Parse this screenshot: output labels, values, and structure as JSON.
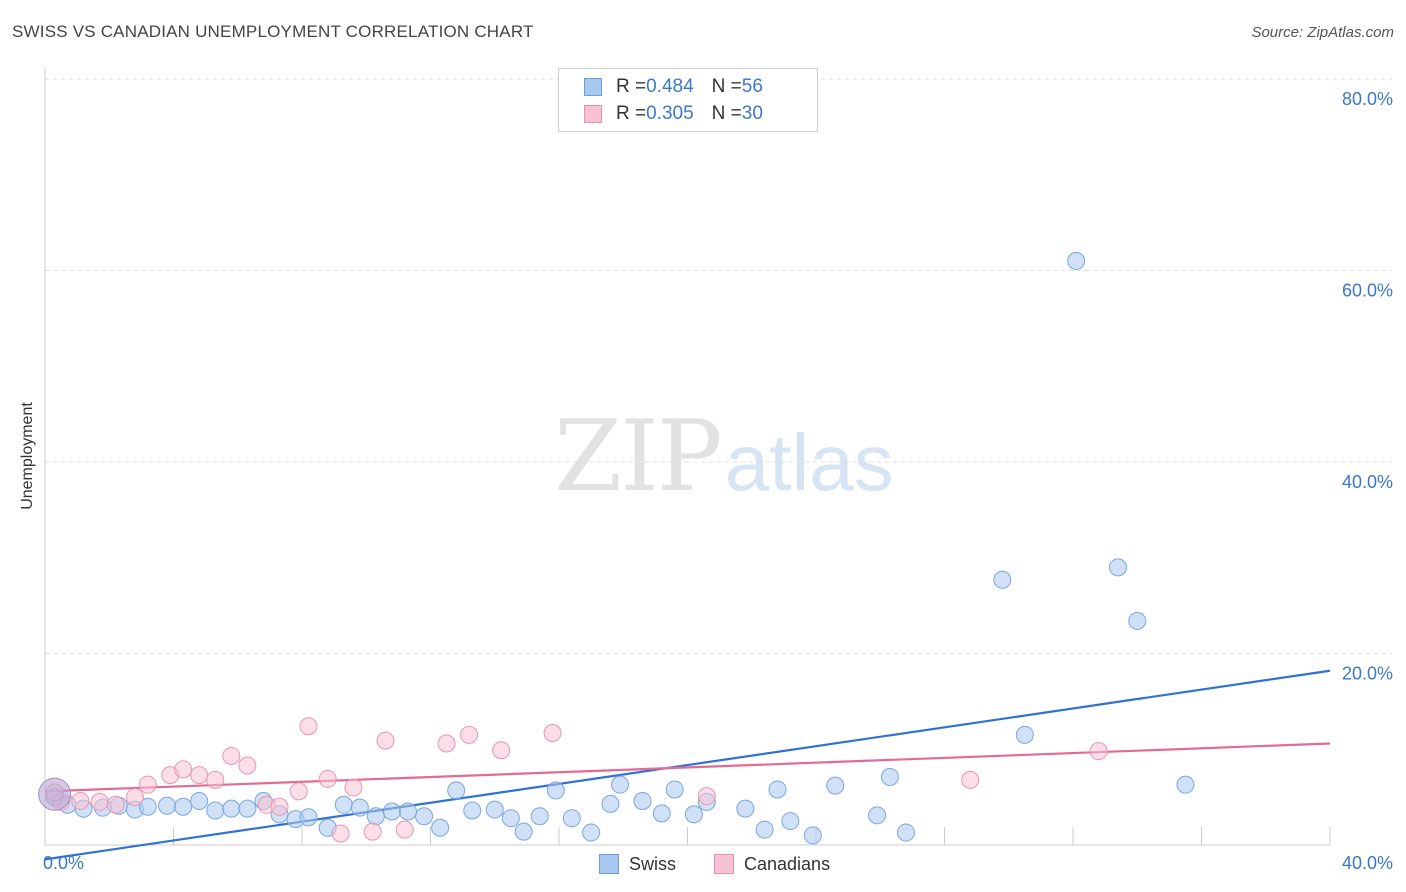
{
  "header": {
    "title": "SWISS VS CANADIAN UNEMPLOYMENT CORRELATION CHART",
    "source": "Source: ZipAtlas.com"
  },
  "watermark": {
    "zip": "ZIP",
    "atlas": "atlas"
  },
  "legend_top": [
    {
      "r_label": "R = ",
      "r_value": "0.484",
      "n_label": "N = ",
      "n_value": "56",
      "color": "#a9c8f0",
      "border": "#6f9fd8"
    },
    {
      "r_label": "R = ",
      "r_value": "0.305",
      "n_label": "N = ",
      "n_value": "30",
      "color": "#f7c3d3",
      "border": "#e593ad"
    }
  ],
  "legend_bottom": [
    {
      "label": "Swiss",
      "color": "#a9c8f0",
      "border": "#6f9fd8"
    },
    {
      "label": "Canadians",
      "color": "#f7c3d3",
      "border": "#e593ad"
    }
  ],
  "colors": {
    "swiss_fill": "#a9c8f0",
    "swiss_stroke": "#7aa6dc",
    "swiss_line": "#2f72d1",
    "canadian_fill": "#f7c3d3",
    "canadian_stroke": "#e897b0",
    "canadian_line": "#e46a94",
    "tick_label": "#3a78c9",
    "grid": "#dddddd"
  },
  "chart_data": {
    "type": "scatter",
    "title": "SWISS VS CANADIAN UNEMPLOYMENT CORRELATION CHART",
    "xlabel": "",
    "ylabel": "Unemployment",
    "xlim": [
      0,
      40
    ],
    "ylim": [
      0,
      80
    ],
    "x_tick_labels": [
      "0.0%",
      "40.0%"
    ],
    "y_ticks": [
      20,
      40,
      60,
      80
    ],
    "y_tick_labels": [
      "20.0%",
      "40.0%",
      "60.0%",
      "80.0%"
    ],
    "grid": "horizontal dashed",
    "legend_position": "top-center",
    "series": [
      {
        "name": "Swiss",
        "r": 0.484,
        "n": 56,
        "trend": [
          [
            0,
            -1.5
          ],
          [
            40,
            18.2
          ]
        ],
        "points": [
          [
            0.3,
            5.0
          ],
          [
            0.7,
            4.2
          ],
          [
            1.2,
            3.8
          ],
          [
            1.8,
            3.9
          ],
          [
            2.3,
            4.1
          ],
          [
            2.8,
            3.7
          ],
          [
            3.2,
            4.0
          ],
          [
            3.8,
            4.1
          ],
          [
            4.3,
            4.0
          ],
          [
            4.8,
            4.6
          ],
          [
            5.3,
            3.6
          ],
          [
            5.8,
            3.8
          ],
          [
            6.3,
            3.8
          ],
          [
            6.8,
            4.6
          ],
          [
            7.3,
            3.2
          ],
          [
            7.8,
            2.7
          ],
          [
            8.2,
            2.9
          ],
          [
            8.8,
            1.8
          ],
          [
            9.3,
            4.2
          ],
          [
            9.8,
            3.9
          ],
          [
            10.3,
            3.0
          ],
          [
            10.8,
            3.5
          ],
          [
            11.3,
            3.5
          ],
          [
            11.8,
            3.0
          ],
          [
            12.3,
            1.8
          ],
          [
            12.8,
            5.7
          ],
          [
            13.3,
            3.6
          ],
          [
            14.0,
            3.7
          ],
          [
            14.5,
            2.8
          ],
          [
            14.9,
            1.4
          ],
          [
            15.4,
            3.0
          ],
          [
            15.9,
            5.7
          ],
          [
            16.4,
            2.8
          ],
          [
            17.0,
            1.3
          ],
          [
            17.6,
            4.3
          ],
          [
            17.9,
            6.3
          ],
          [
            18.6,
            4.6
          ],
          [
            19.2,
            3.3
          ],
          [
            19.6,
            5.8
          ],
          [
            20.2,
            3.2
          ],
          [
            20.6,
            4.5
          ],
          [
            21.8,
            3.8
          ],
          [
            22.4,
            1.6
          ],
          [
            22.8,
            5.8
          ],
          [
            23.2,
            2.5
          ],
          [
            23.9,
            1.0
          ],
          [
            24.6,
            6.2
          ],
          [
            25.9,
            3.1
          ],
          [
            26.3,
            7.1
          ],
          [
            26.8,
            1.3
          ],
          [
            29.8,
            27.7
          ],
          [
            30.5,
            11.5
          ],
          [
            32.1,
            61.0
          ],
          [
            33.4,
            29.0
          ],
          [
            34.0,
            23.4
          ],
          [
            35.5,
            6.3
          ]
        ]
      },
      {
        "name": "Canadians",
        "r": 0.305,
        "n": 30,
        "trend": [
          [
            0,
            5.6
          ],
          [
            40,
            10.6
          ]
        ],
        "points": [
          [
            0.5,
            4.5
          ],
          [
            1.1,
            4.6
          ],
          [
            1.7,
            4.5
          ],
          [
            2.2,
            4.2
          ],
          [
            2.8,
            5.0
          ],
          [
            3.2,
            6.3
          ],
          [
            3.9,
            7.3
          ],
          [
            4.3,
            7.9
          ],
          [
            4.8,
            7.3
          ],
          [
            5.3,
            6.8
          ],
          [
            5.8,
            9.3
          ],
          [
            6.3,
            8.3
          ],
          [
            6.9,
            4.2
          ],
          [
            7.3,
            4.0
          ],
          [
            7.9,
            5.6
          ],
          [
            8.2,
            12.4
          ],
          [
            8.8,
            6.9
          ],
          [
            9.2,
            1.2
          ],
          [
            9.6,
            6.0
          ],
          [
            10.2,
            1.4
          ],
          [
            10.6,
            10.9
          ],
          [
            11.2,
            1.6
          ],
          [
            12.5,
            10.6
          ],
          [
            13.2,
            11.5
          ],
          [
            14.2,
            9.9
          ],
          [
            15.8,
            11.7
          ],
          [
            20.6,
            5.1
          ],
          [
            28.8,
            6.8
          ],
          [
            32.8,
            9.8
          ],
          [
            0.3,
            5.5
          ]
        ]
      }
    ]
  }
}
